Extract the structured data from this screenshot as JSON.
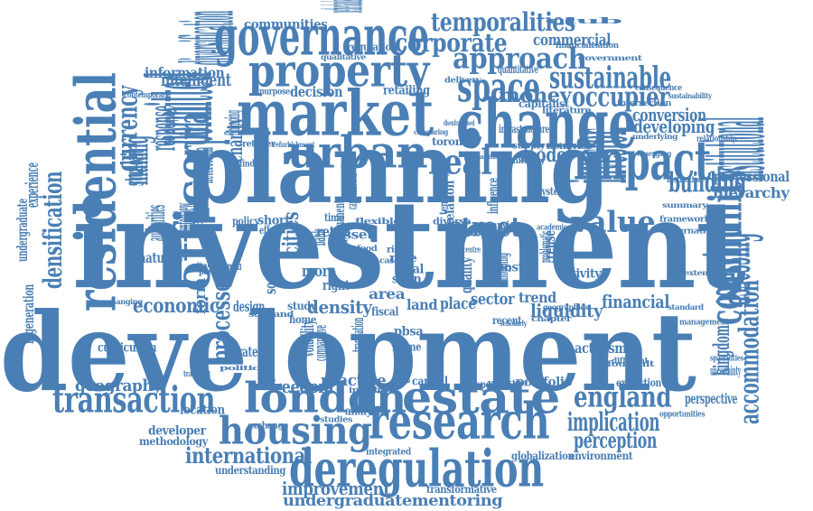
{
  "colors": {
    "word": "#4a7fb5",
    "background": "#ffffff"
  },
  "words": [
    {
      "text": "development"
    },
    {
      "text": "investment"
    },
    {
      "text": "planning"
    },
    {
      "text": "market"
    },
    {
      "text": "change"
    },
    {
      "text": "residential"
    },
    {
      "text": "urban"
    },
    {
      "text": "research"
    },
    {
      "text": "deregulation"
    },
    {
      "text": "estate"
    },
    {
      "text": "london"
    },
    {
      "text": "governance"
    },
    {
      "text": "property"
    },
    {
      "text": "impact"
    },
    {
      "text": "housing"
    },
    {
      "text": "england"
    },
    {
      "text": "transaction"
    },
    {
      "text": "office"
    },
    {
      "text": "community"
    },
    {
      "text": "space"
    },
    {
      "text": "approach"
    },
    {
      "text": "temporalities"
    },
    {
      "text": "corporate"
    },
    {
      "text": "sustainable"
    },
    {
      "text": "occupier"
    },
    {
      "text": "value"
    },
    {
      "text": "real"
    },
    {
      "text": "investor"
    },
    {
      "text": "institutional"
    },
    {
      "text": "building"
    },
    {
      "text": "assessing"
    },
    {
      "text": "accommodation"
    },
    {
      "text": "implication"
    },
    {
      "text": "perception"
    },
    {
      "text": "international"
    },
    {
      "text": "improvement"
    },
    {
      "text": "undergraduatementoring"
    },
    {
      "text": "economic"
    },
    {
      "text": "street"
    },
    {
      "text": "permitted"
    },
    {
      "text": "rural"
    },
    {
      "text": "intelligent"
    },
    {
      "text": "currency"
    },
    {
      "text": "densification"
    },
    {
      "text": "processes"
    },
    {
      "text": "form"
    },
    {
      "text": "geography"
    },
    {
      "text": "freedom"
    },
    {
      "text": "practice"
    },
    {
      "text": "density"
    },
    {
      "text": "liquidity"
    },
    {
      "text": "financial"
    },
    {
      "text": "conversion"
    },
    {
      "text": "developing"
    },
    {
      "text": "money"
    },
    {
      "text": "model"
    },
    {
      "text": "hierarchy"
    },
    {
      "text": "professional"
    },
    {
      "text": "commercial"
    },
    {
      "text": "communities"
    },
    {
      "text": "diversification"
    },
    {
      "text": "information"
    },
    {
      "text": "response"
    },
    {
      "text": "making"
    },
    {
      "text": "charity"
    },
    {
      "text": "paper"
    },
    {
      "text": "student"
    },
    {
      "text": "experience"
    },
    {
      "text": "undergraduate"
    },
    {
      "text": "regeneration"
    },
    {
      "text": "maturity"
    },
    {
      "text": "design"
    },
    {
      "text": "strategy"
    },
    {
      "text": "curriculum"
    },
    {
      "text": "location"
    },
    {
      "text": "developer"
    },
    {
      "text": "methodology"
    },
    {
      "text": "exchange"
    },
    {
      "text": "understanding"
    },
    {
      "text": "transformative"
    },
    {
      "text": "integrated"
    },
    {
      "text": "globalization"
    },
    {
      "text": "environment"
    },
    {
      "text": "activism"
    },
    {
      "text": "extraction"
    },
    {
      "text": "opportunities"
    },
    {
      "text": "perspective"
    },
    {
      "text": "kingdom"
    },
    {
      "text": "uncertainty"
    },
    {
      "text": "spatialities"
    },
    {
      "text": "portfolio"
    },
    {
      "text": "capital"
    },
    {
      "text": "europe"
    },
    {
      "text": "analysis"
    },
    {
      "text": "studies"
    },
    {
      "text": "trend"
    },
    {
      "text": "sector"
    },
    {
      "text": "place"
    },
    {
      "text": "land"
    },
    {
      "text": "area"
    },
    {
      "text": "asset"
    },
    {
      "text": "global"
    },
    {
      "text": "retail"
    },
    {
      "text": "cities"
    },
    {
      "text": "short"
    },
    {
      "text": "policy"
    },
    {
      "text": "time"
    },
    {
      "text": "effect"
    },
    {
      "text": "more"
    },
    {
      "text": "right"
    },
    {
      "text": "retailing"
    },
    {
      "text": "decision"
    },
    {
      "text": "regulation"
    },
    {
      "text": "qualitative"
    },
    {
      "text": "delivery"
    },
    {
      "text": "contemporary"
    },
    {
      "text": "purpose"
    },
    {
      "text": "netherlands"
    },
    {
      "text": "financialisation"
    },
    {
      "text": "government"
    },
    {
      "text": "literature"
    },
    {
      "text": "toronto"
    },
    {
      "text": "supply"
    },
    {
      "text": "finding"
    },
    {
      "text": "retailer"
    },
    {
      "text": "financing"
    },
    {
      "text": "social"
    },
    {
      "text": "quality"
    },
    {
      "text": "activity"
    },
    {
      "text": "reuse"
    },
    {
      "text": "framework"
    },
    {
      "text": "relationship"
    },
    {
      "text": "alternative"
    },
    {
      "text": "system"
    },
    {
      "text": "institution"
    },
    {
      "text": "emerging"
    },
    {
      "text": "consequence"
    },
    {
      "text": "sustainability"
    },
    {
      "text": "rate"
    },
    {
      "text": "local"
    },
    {
      "text": "swap"
    },
    {
      "text": "case"
    },
    {
      "text": "risk"
    },
    {
      "text": "post"
    },
    {
      "text": "fiscal"
    },
    {
      "text": "pbsa"
    },
    {
      "text": "blame"
    },
    {
      "text": "critical"
    },
    {
      "text": "home"
    },
    {
      "text": "study"
    },
    {
      "text": "different"
    },
    {
      "text": "standard"
    },
    {
      "text": "transient"
    },
    {
      "text": "potential"
    },
    {
      "text": "interview"
    },
    {
      "text": "authorities"
    },
    {
      "text": "heterotopia"
    },
    {
      "text": "changing"
    },
    {
      "text": "recent"
    },
    {
      "text": "marxism"
    },
    {
      "text": "diverse"
    },
    {
      "text": "food"
    },
    {
      "text": "flexible"
    },
    {
      "text": "bank"
    },
    {
      "text": "centre"
    },
    {
      "text": "club"
    },
    {
      "text": "disenfranchised"
    },
    {
      "text": "comparing"
    },
    {
      "text": "academic"
    },
    {
      "text": "chapter"
    },
    {
      "text": "foucault"
    },
    {
      "text": "management"
    },
    {
      "text": "comparative"
    },
    {
      "text": "volatility"
    },
    {
      "text": "pastoral"
    },
    {
      "text": "dialogue"
    },
    {
      "text": "traditional"
    },
    {
      "text": "working"
    },
    {
      "text": "problematic"
    },
    {
      "text": "capitalization"
    },
    {
      "text": "temporary"
    },
    {
      "text": "relation"
    },
    {
      "text": "influence"
    },
    {
      "text": "behavior"
    },
    {
      "text": "intersection"
    },
    {
      "text": "quantitative"
    },
    {
      "text": "capitalist"
    },
    {
      "text": "infrastructure"
    },
    {
      "text": "scholarly"
    },
    {
      "text": "insight"
    },
    {
      "text": "permanent"
    },
    {
      "text": "refurbishment"
    },
    {
      "text": "luminality"
    },
    {
      "text": "underlying"
    },
    {
      "text": "summary"
    },
    {
      "text": "extending"
    },
    {
      "text": "geographies"
    },
    {
      "text": "exploration"
    },
    {
      "text": "translation"
    },
    {
      "text": "scotland"
    },
    {
      "text": "politic"
    },
    {
      "text": "shopping"
    },
    {
      "text": "important"
    },
    {
      "text": "mentoring"
    }
  ]
}
